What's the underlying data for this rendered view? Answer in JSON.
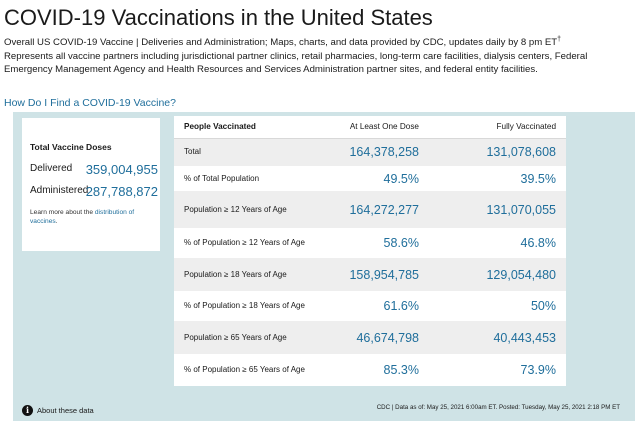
{
  "page": {
    "title": "COVID-19 Vaccinations in the United States",
    "intro_line1": "Overall US COVID-19 Vaccine | Deliveries and Administration; Maps, charts, and data provided by CDC, updates daily by 8 pm ET",
    "intro_dagger": "†",
    "intro_line2": "Represents all vaccine partners including jurisdictional partner clinics, retail pharmacies, long-term care facilities, dialysis centers, Federal Emergency Management Agency and Health Resources and Services Administration partner sites, and federal entity facilities.",
    "find_link": "How Do I Find a COVID-19 Vaccine?"
  },
  "doses": {
    "title": "Total Vaccine Doses",
    "delivered_label": "Delivered",
    "delivered_value": "359,004,955",
    "administered_label": "Administered",
    "administered_value": "287,788,872",
    "note_prefix": "Learn more about the ",
    "note_link": "distribution of vaccines",
    "note_suffix": "."
  },
  "table": {
    "headers": [
      "People Vaccinated",
      "At Least One Dose",
      "Fully Vaccinated"
    ],
    "rows": [
      {
        "label": "Total",
        "one_dose": "164,378,258",
        "fully": "131,078,608"
      },
      {
        "label": "% of Total Population",
        "one_dose": "49.5%",
        "fully": "39.5%"
      },
      {
        "label": "Population ≥ 12 Years of Age",
        "one_dose": "164,272,277",
        "fully": "131,070,055"
      },
      {
        "label": "% of Population ≥ 12 Years of Age",
        "one_dose": "58.6%",
        "fully": "46.8%"
      },
      {
        "label": "Population ≥ 18 Years of Age",
        "one_dose": "158,954,785",
        "fully": "129,054,480"
      },
      {
        "label": "% of Population ≥ 18 Years of Age",
        "one_dose": "61.6%",
        "fully": "50%"
      },
      {
        "label": "Population ≥ 65 Years of Age",
        "one_dose": "46,674,798",
        "fully": "40,443,453"
      },
      {
        "label": "% of Population ≥ 65 Years of Age",
        "one_dose": "85.3%",
        "fully": "73.9%"
      }
    ]
  },
  "footer": {
    "info_icon": "i",
    "about_label": "About these data",
    "source": "CDC | Data as of: May 25, 2021 6:00am ET. Posted: Tuesday, May 25, 2021 2:18 PM ET"
  },
  "colors": {
    "accent": "#1f6e9b",
    "panel_background": "#cfe3e6",
    "row_shade": "#eeeeee"
  },
  "icons": {
    "info": "info-icon"
  }
}
